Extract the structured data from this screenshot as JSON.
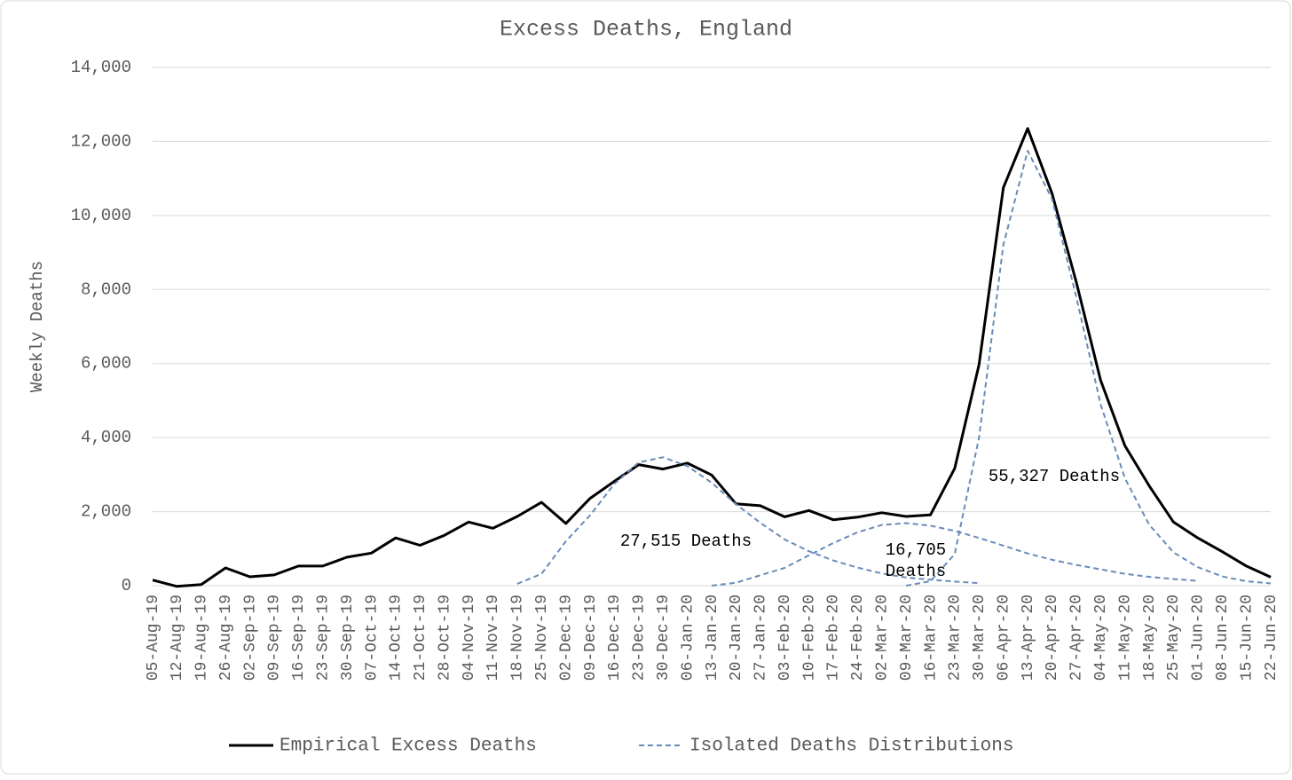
{
  "chart_data": {
    "type": "line",
    "title": "Excess Deaths, England",
    "y_label": "Weekly Deaths",
    "categories": [
      "05-Aug-19",
      "12-Aug-19",
      "19-Aug-19",
      "26-Aug-19",
      "02-Sep-19",
      "09-Sep-19",
      "16-Sep-19",
      "23-Sep-19",
      "30-Sep-19",
      "07-Oct-19",
      "14-Oct-19",
      "21-Oct-19",
      "28-Oct-19",
      "04-Nov-19",
      "11-Nov-19",
      "18-Nov-19",
      "25-Nov-19",
      "02-Dec-19",
      "09-Dec-19",
      "16-Dec-19",
      "23-Dec-19",
      "30-Dec-19",
      "06-Jan-20",
      "13-Jan-20",
      "20-Jan-20",
      "27-Jan-20",
      "03-Feb-20",
      "10-Feb-20",
      "17-Feb-20",
      "24-Feb-20",
      "02-Mar-20",
      "09-Mar-20",
      "16-Mar-20",
      "23-Mar-20",
      "30-Mar-20",
      "06-Apr-20",
      "13-Apr-20",
      "20-Apr-20",
      "27-Apr-20",
      "04-May-20",
      "11-May-20",
      "18-May-20",
      "25-May-20",
      "01-Jun-20",
      "08-Jun-20",
      "15-Jun-20",
      "22-Jun-20"
    ],
    "series": [
      {
        "name": "Empirical Excess Deaths",
        "color": "#000000",
        "dash": false,
        "values": [
          150,
          -20,
          30,
          480,
          240,
          290,
          530,
          530,
          770,
          880,
          1290,
          1090,
          1360,
          1720,
          1550,
          1870,
          2250,
          1680,
          2360,
          2820,
          3270,
          3150,
          3310,
          2990,
          2210,
          2160,
          1860,
          2030,
          1780,
          1850,
          1970,
          1870,
          1910,
          3170,
          5970,
          10750,
          12350,
          10600,
          8200,
          5550,
          3780,
          2700,
          1720,
          1290,
          920,
          530,
          230
        ]
      },
      {
        "name": "Isolated Deaths Distributions",
        "color": "#6a8bb8",
        "dash": true,
        "curves": [
          [
            null,
            null,
            null,
            null,
            null,
            null,
            null,
            null,
            null,
            null,
            null,
            null,
            null,
            null,
            null,
            50,
            320,
            1200,
            1900,
            2750,
            3330,
            3470,
            3230,
            2780,
            2200,
            1700,
            1250,
            930,
            680,
            490,
            330,
            220,
            160,
            110,
            70,
            null,
            null,
            null,
            null,
            null,
            null,
            null,
            null,
            null,
            null,
            null,
            null
          ],
          [
            null,
            null,
            null,
            null,
            null,
            null,
            null,
            null,
            null,
            null,
            null,
            null,
            null,
            null,
            null,
            null,
            null,
            null,
            null,
            null,
            null,
            null,
            null,
            0,
            80,
            280,
            480,
            820,
            1150,
            1440,
            1640,
            1690,
            1620,
            1480,
            1290,
            1080,
            870,
            700,
            560,
            440,
            320,
            240,
            180,
            130,
            null,
            null,
            null
          ],
          [
            null,
            null,
            null,
            null,
            null,
            null,
            null,
            null,
            null,
            null,
            null,
            null,
            null,
            null,
            null,
            null,
            null,
            null,
            null,
            null,
            null,
            null,
            null,
            null,
            null,
            null,
            null,
            null,
            null,
            null,
            null,
            0,
            120,
            850,
            4000,
            9200,
            11750,
            10450,
            7800,
            4900,
            2900,
            1650,
            900,
            500,
            250,
            120,
            60
          ]
        ]
      }
    ],
    "annotations": [
      [
        "27,515 Deaths"
      ],
      [
        "16,705",
        "Deaths"
      ],
      [
        "55,327 Deaths"
      ]
    ],
    "ylim": [
      0,
      14000
    ],
    "yticks": [
      {
        "value": 0,
        "label": "0"
      },
      {
        "value": 2000,
        "label": "2,000"
      },
      {
        "value": 4000,
        "label": "4,000"
      },
      {
        "value": 6000,
        "label": "6,000"
      },
      {
        "value": 8000,
        "label": "8,000"
      },
      {
        "value": 10000,
        "label": "10,000"
      },
      {
        "value": 12000,
        "label": "12,000"
      },
      {
        "value": 14000,
        "label": "14,000"
      }
    ],
    "grid": true
  }
}
